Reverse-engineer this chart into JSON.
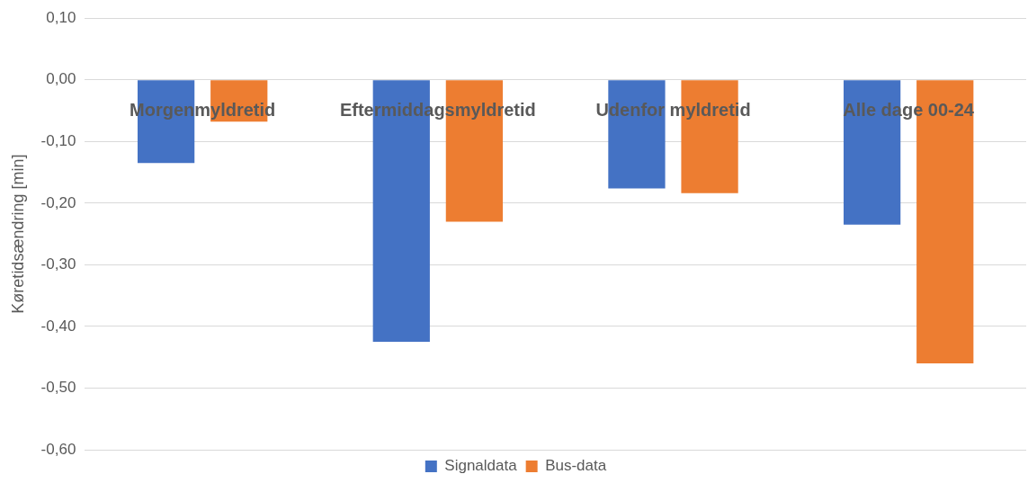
{
  "chart_data": {
    "type": "bar",
    "ylabel": "Køretidsændring [min]",
    "categories": [
      "Morgenmyldretid",
      "Eftermiddagsmyldretid",
      "Udenfor myldretid",
      "Alle dage 00-24"
    ],
    "series": [
      {
        "name": "Signaldata",
        "color": "#4472c4",
        "values": [
          -0.135,
          -0.425,
          -0.176,
          -0.235
        ]
      },
      {
        "name": "Bus-data",
        "color": "#ed7d31",
        "values": [
          -0.068,
          -0.23,
          -0.184,
          -0.46
        ]
      }
    ],
    "ylim": [
      -0.6,
      0.1
    ],
    "yticks": [
      {
        "value": 0.1,
        "label": "0,10"
      },
      {
        "value": 0,
        "label": "0,00"
      },
      {
        "value": -0.1,
        "label": "-0,10"
      },
      {
        "value": -0.2,
        "label": "-0,20"
      },
      {
        "value": -0.3,
        "label": "-0,30"
      },
      {
        "value": -0.4,
        "label": "-0,40"
      },
      {
        "value": -0.5,
        "label": "-0,50"
      },
      {
        "value": -0.6,
        "label": "-0,60"
      }
    ],
    "grid": "y",
    "legend": "bottom"
  }
}
